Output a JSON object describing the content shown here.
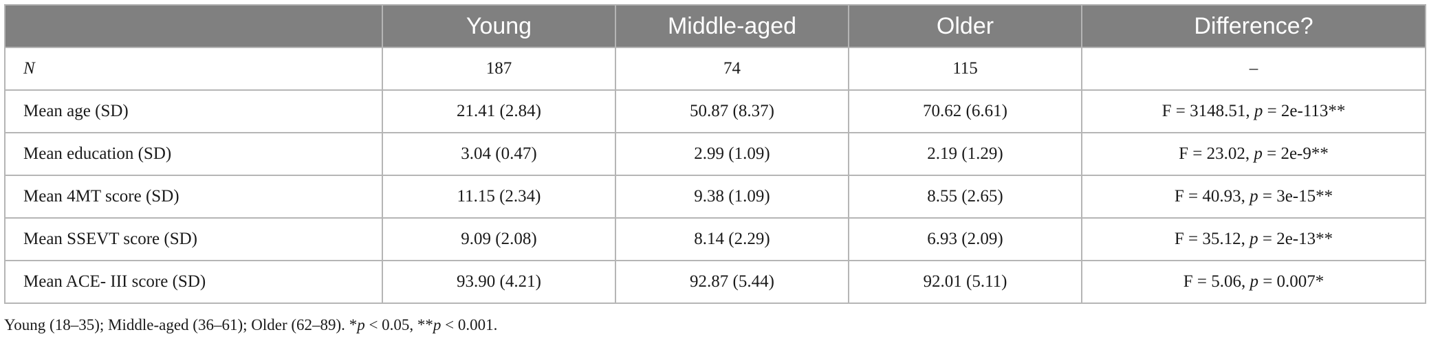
{
  "table": {
    "headers": [
      "",
      "Young",
      "Middle-aged",
      "Older",
      "Difference?"
    ],
    "rows": [
      {
        "label": "N",
        "young": "187",
        "middle": "74",
        "older": "115",
        "diff_prefix": "–",
        "p": "",
        "diff_suffix": ""
      },
      {
        "label": "Mean age (SD)",
        "young": "21.41 (2.84)",
        "middle": "50.87 (8.37)",
        "older": "70.62 (6.61)",
        "diff_prefix": "F = 3148.51, ",
        "p": "p",
        "diff_suffix": " = 2e-113**"
      },
      {
        "label": "Mean education (SD)",
        "young": "3.04 (0.47)",
        "middle": "2.99 (1.09)",
        "older": "2.19 (1.29)",
        "diff_prefix": "F = 23.02, ",
        "p": "p",
        "diff_suffix": " = 2e-9**"
      },
      {
        "label": "Mean 4MT score (SD)",
        "young": "11.15 (2.34)",
        "middle": "9.38 (1.09)",
        "older": "8.55 (2.65)",
        "diff_prefix": "F = 40.93, ",
        "p": "p",
        "diff_suffix": " = 3e-15**"
      },
      {
        "label": "Mean SSEVT score (SD)",
        "young": "9.09 (2.08)",
        "middle": "8.14 (2.29)",
        "older": "6.93 (2.09)",
        "diff_prefix": "F = 35.12, ",
        "p": "p",
        "diff_suffix": " = 2e-13**"
      },
      {
        "label": "Mean ACE- III score (SD)",
        "young": "93.90 (4.21)",
        "middle": "92.87 (5.44)",
        "older": "92.01 (5.11)",
        "diff_prefix": "F = 5.06, ",
        "p": "p",
        "diff_suffix": " = 0.007*"
      }
    ]
  },
  "footnote": {
    "text": "Young (18–35); Middle-aged (36–61); Older (62–89). ",
    "star1": "*",
    "p1": "p",
    "rest1": " < 0.05, ",
    "star2": "**",
    "p2": "p",
    "rest2": " < 0.001."
  }
}
